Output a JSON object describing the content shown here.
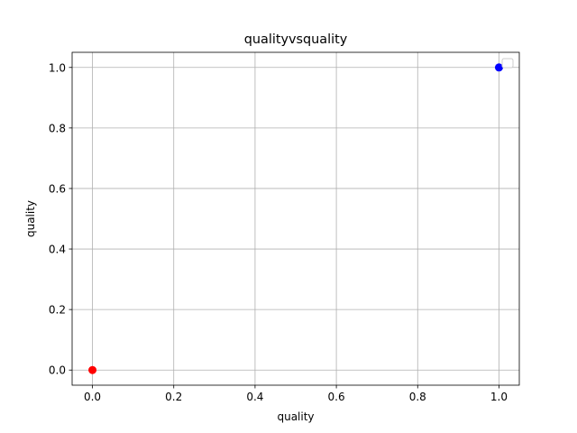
{
  "chart_data": {
    "type": "scatter",
    "title": "qualityvsquality",
    "xlabel": "quality",
    "ylabel": "quality",
    "xlim": [
      -0.05,
      1.05
    ],
    "ylim": [
      -0.05,
      1.05
    ],
    "xticks": [
      0.0,
      0.2,
      0.4,
      0.6,
      0.8,
      1.0
    ],
    "yticks": [
      0.0,
      0.2,
      0.4,
      0.6,
      0.8,
      1.0
    ],
    "xtick_labels": [
      "0.0",
      "0.2",
      "0.4",
      "0.6",
      "0.8",
      "1.0"
    ],
    "ytick_labels": [
      "0.0",
      "0.2",
      "0.4",
      "0.6",
      "0.8",
      "1.0"
    ],
    "grid": true,
    "legend": {
      "placement": "top-right",
      "entries": []
    },
    "points": [
      {
        "x": 0.0,
        "y": 0.0,
        "color": "#ff0000"
      },
      {
        "x": 1.0,
        "y": 1.0,
        "color": "#0000ff"
      }
    ]
  }
}
